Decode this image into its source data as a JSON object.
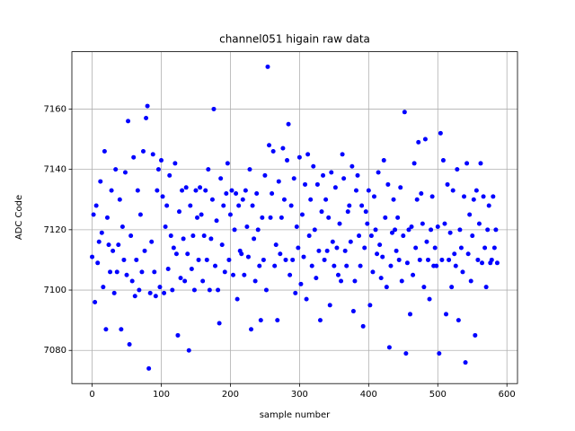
{
  "chart_data": {
    "type": "scatter",
    "title": "channel051 higain raw data",
    "xlabel": "sample number",
    "ylabel": "ADC Code",
    "color": "#0000ff",
    "grid": true,
    "xlim": [
      -29.3,
      615.3
    ],
    "ylim": [
      7069,
      7179
    ],
    "xticks": [
      0,
      100,
      200,
      300,
      400,
      500,
      600
    ],
    "yticks": [
      7080,
      7100,
      7120,
      7140,
      7160
    ],
    "x": [
      0,
      2,
      4,
      6,
      8,
      10,
      12,
      14,
      16,
      18,
      20,
      22,
      24,
      26,
      28,
      30,
      32,
      34,
      36,
      38,
      40,
      42,
      44,
      46,
      48,
      50,
      52,
      54,
      56,
      58,
      60,
      62,
      64,
      66,
      68,
      70,
      72,
      74,
      76,
      78,
      80,
      82,
      84,
      86,
      88,
      90,
      92,
      94,
      96,
      98,
      100,
      102,
      104,
      106,
      108,
      110,
      112,
      114,
      116,
      118,
      120,
      122,
      124,
      126,
      128,
      130,
      132,
      134,
      136,
      138,
      140,
      142,
      144,
      146,
      148,
      150,
      152,
      154,
      156,
      158,
      160,
      162,
      164,
      166,
      168,
      170,
      172,
      174,
      176,
      178,
      180,
      182,
      184,
      186,
      188,
      190,
      192,
      194,
      196,
      198,
      200,
      202,
      204,
      206,
      208,
      210,
      212,
      214,
      216,
      218,
      220,
      222,
      224,
      226,
      228,
      230,
      232,
      234,
      236,
      238,
      240,
      242,
      244,
      246,
      248,
      250,
      252,
      254,
      256,
      258,
      260,
      262,
      264,
      266,
      268,
      270,
      272,
      274,
      276,
      278,
      280,
      282,
      284,
      286,
      288,
      290,
      292,
      294,
      296,
      298,
      300,
      302,
      304,
      306,
      308,
      310,
      312,
      314,
      316,
      318,
      320,
      322,
      324,
      326,
      328,
      330,
      332,
      334,
      336,
      338,
      340,
      342,
      344,
      346,
      348,
      350,
      352,
      354,
      356,
      358,
      360,
      362,
      364,
      366,
      368,
      370,
      372,
      374,
      376,
      378,
      380,
      382,
      384,
      386,
      388,
      390,
      392,
      394,
      396,
      398,
      400,
      402,
      404,
      406,
      408,
      410,
      412,
      414,
      416,
      418,
      420,
      422,
      424,
      426,
      428,
      430,
      432,
      434,
      436,
      438,
      440,
      442,
      444,
      446,
      448,
      450,
      452,
      454,
      456,
      458,
      460,
      462,
      464,
      466,
      468,
      470,
      472,
      474,
      476,
      478,
      480,
      482,
      484,
      486,
      488,
      490,
      492,
      494,
      496,
      498,
      500,
      502,
      504,
      506,
      508,
      510,
      512,
      514,
      516,
      518,
      520,
      522,
      524,
      526,
      528,
      530,
      532,
      534,
      536,
      538,
      540,
      542,
      544,
      546,
      548,
      550,
      552,
      554,
      556,
      558,
      560,
      562,
      564,
      566,
      568,
      570,
      572,
      574,
      576,
      578,
      580,
      582,
      584,
      586
    ],
    "values": [
      7111,
      7125,
      7096,
      7128,
      7109,
      7116,
      7136,
      7119,
      7101,
      7146,
      7087,
      7124,
      7115,
      7106,
      7133,
      7113,
      7099,
      7140,
      7106,
      7115,
      7130,
      7087,
      7121,
      7110,
      7139,
      7105,
      7156,
      7082,
      7118,
      7103,
      7144,
      7098,
      7110,
      7133,
      7100,
      7125,
      7106,
      7146,
      7113,
      7157,
      7161,
      7074,
      7099,
      7116,
      7145,
      7106,
      7098,
      7133,
      7140,
      7101,
      7143,
      7131,
      7099,
      7121,
      7128,
      7107,
      7138,
      7118,
      7100,
      7114,
      7142,
      7112,
      7085,
      7126,
      7104,
      7133,
      7117,
      7103,
      7134,
      7112,
      7080,
      7128,
      7107,
      7118,
      7100,
      7133,
      7124,
      7110,
      7134,
      7125,
      7103,
      7118,
      7133,
      7110,
      7140,
      7100,
      7117,
      7130,
      7160,
      7108,
      7123,
      7100,
      7089,
      7137,
      7115,
      7128,
      7106,
      7132,
      7142,
      7110,
      7125,
      7133,
      7105,
      7120,
      7132,
      7097,
      7128,
      7113,
      7112,
      7130,
      7105,
      7133,
      7121,
      7111,
      7140,
      7087,
      7128,
      7117,
      7103,
      7132,
      7120,
      7108,
      7090,
      7124,
      7110,
      7138,
      7100,
      7174,
      7148,
      7124,
      7132,
      7146,
      7108,
      7115,
      7090,
      7136,
      7112,
      7124,
      7147,
      7130,
      7110,
      7143,
      7155,
      7105,
      7128,
      7110,
      7137,
      7099,
      7121,
      7114,
      7144,
      7102,
      7125,
      7111,
      7135,
      7097,
      7145,
      7118,
      7130,
      7108,
      7141,
      7120,
      7104,
      7135,
      7113,
      7090,
      7126,
      7138,
      7110,
      7130,
      7113,
      7124,
      7095,
      7139,
      7116,
      7108,
      7134,
      7114,
      7105,
      7122,
      7103,
      7145,
      7137,
      7113,
      7108,
      7126,
      7128,
      7116,
      7141,
      7093,
      7103,
      7133,
      7138,
      7118,
      7108,
      7128,
      7088,
      7114,
      7126,
      7122,
      7133,
      7095,
      7118,
      7106,
      7131,
      7120,
      7112,
      7139,
      7115,
      7104,
      7111,
      7143,
      7124,
      7101,
      7135,
      7081,
      7108,
      7119,
      7130,
      7120,
      7113,
      7124,
      7110,
      7134,
      7103,
      7118,
      7159,
      7079,
      7109,
      7120,
      7092,
      7121,
      7105,
      7142,
      7114,
      7130,
      7149,
      7110,
      7132,
      7122,
      7101,
      7150,
      7116,
      7110,
      7097,
      7120,
      7131,
      7108,
      7114,
      7108,
      7121,
      7079,
      7152,
      7110,
      7143,
      7122,
      7092,
      7135,
      7110,
      7119,
      7101,
      7133,
      7112,
      7108,
      7140,
      7090,
      7120,
      7114,
      7106,
      7131,
      7076,
      7142,
      7112,
      7125,
      7103,
      7118,
      7130,
      7085,
      7133,
      7110,
      7122,
      7142,
      7109,
      7131,
      7114,
      7101,
      7120,
      7128,
      7109,
      7110,
      7131,
      7114,
      7120,
      7109
    ]
  }
}
